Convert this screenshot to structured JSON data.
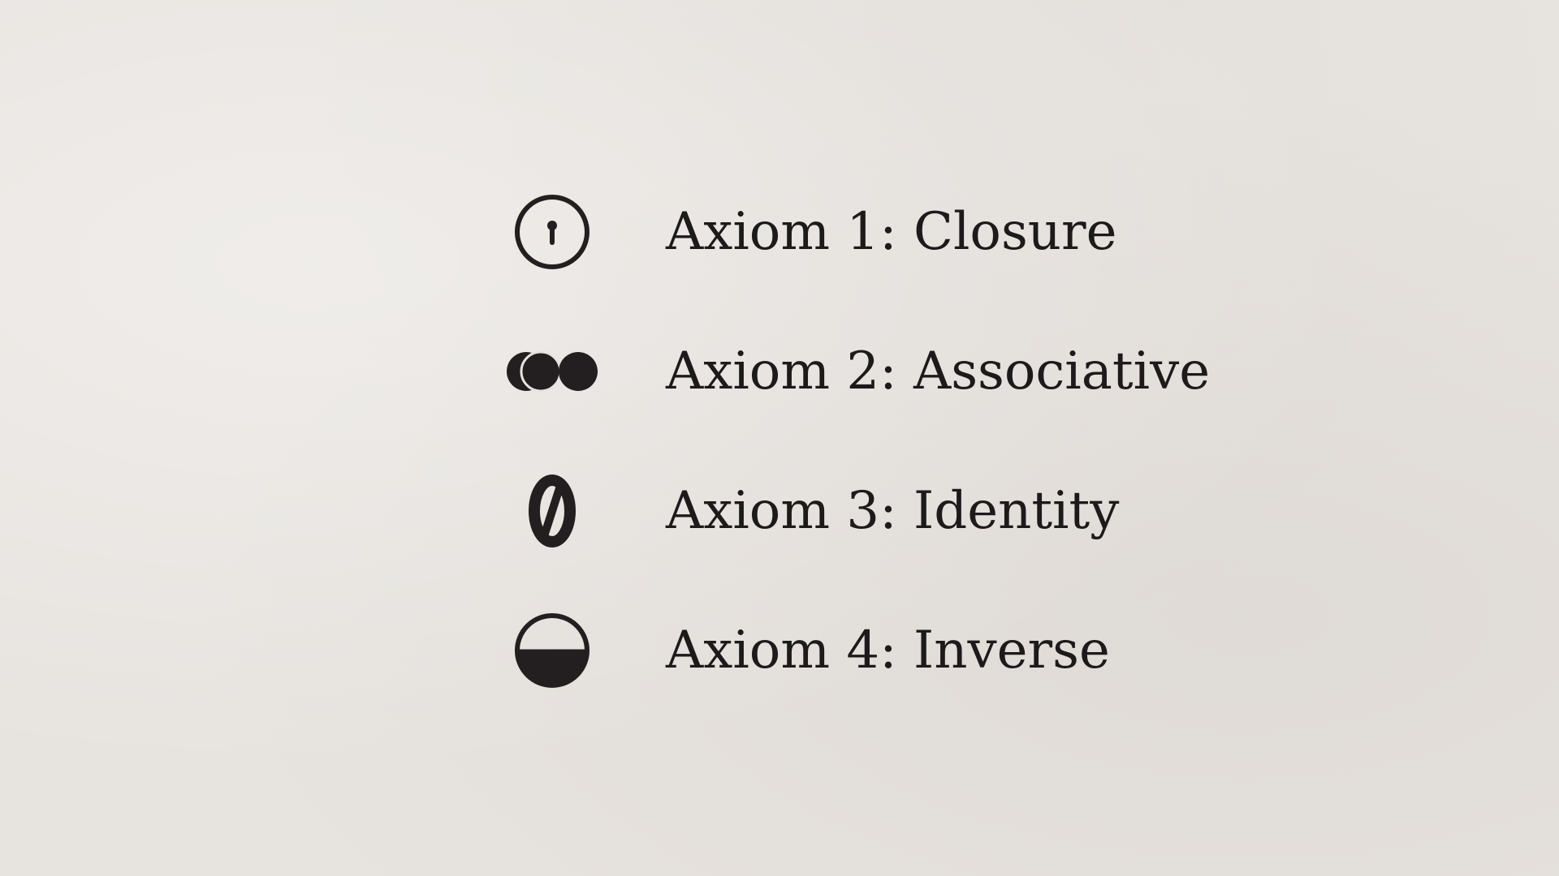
{
  "colors": {
    "background": "#e7e3df",
    "ink": "#231f20"
  },
  "axioms": [
    {
      "label": "Axiom 1: Closure",
      "icon": "keyhole-circle-icon"
    },
    {
      "label": "Axiom 2: Associative",
      "icon": "overlapping-circles-icon"
    },
    {
      "label": "Axiom 3: Identity",
      "icon": "slashed-zero-icon"
    },
    {
      "label": "Axiom 4: Inverse",
      "icon": "half-filled-circle-icon"
    }
  ]
}
